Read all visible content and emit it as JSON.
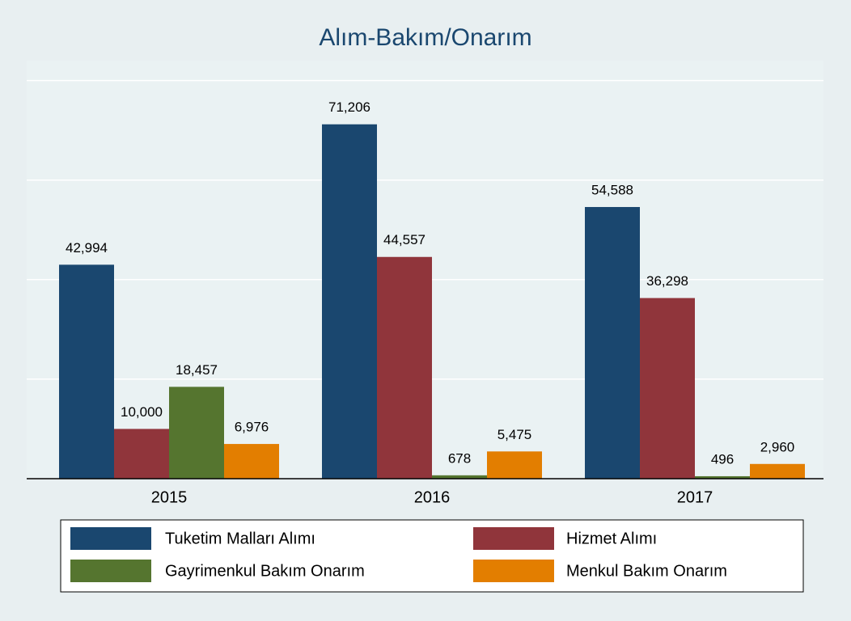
{
  "chart_data": {
    "type": "bar",
    "title": "Alım-Bakım/Onarım",
    "categories": [
      "2015",
      "2016",
      "2017"
    ],
    "series": [
      {
        "name": "Tuketim Malları Alımı",
        "color": "#1a476f",
        "values": [
          42994,
          71206,
          54588
        ],
        "value_labels": [
          "42,994",
          "71,206",
          "54,588"
        ]
      },
      {
        "name": "Hizmet Alımı",
        "color": "#90353b",
        "values": [
          10000,
          44557,
          36298
        ],
        "value_labels": [
          "10,000",
          "44,557",
          "36,298"
        ]
      },
      {
        "name": "Gayrimenkul Bakım Onarım",
        "color": "#55752f",
        "values": [
          18457,
          678,
          496
        ],
        "value_labels": [
          "18,457",
          "678",
          "496"
        ]
      },
      {
        "name": "Menkul Bakım Onarım",
        "color": "#e37e00",
        "values": [
          6976,
          5475,
          2960
        ],
        "value_labels": [
          "6,976",
          "5,475",
          "2,960"
        ]
      }
    ],
    "ylim": [
      0,
      84000
    ],
    "yticks": [
      0,
      20000,
      40000,
      60000,
      80000
    ],
    "grid": true
  }
}
